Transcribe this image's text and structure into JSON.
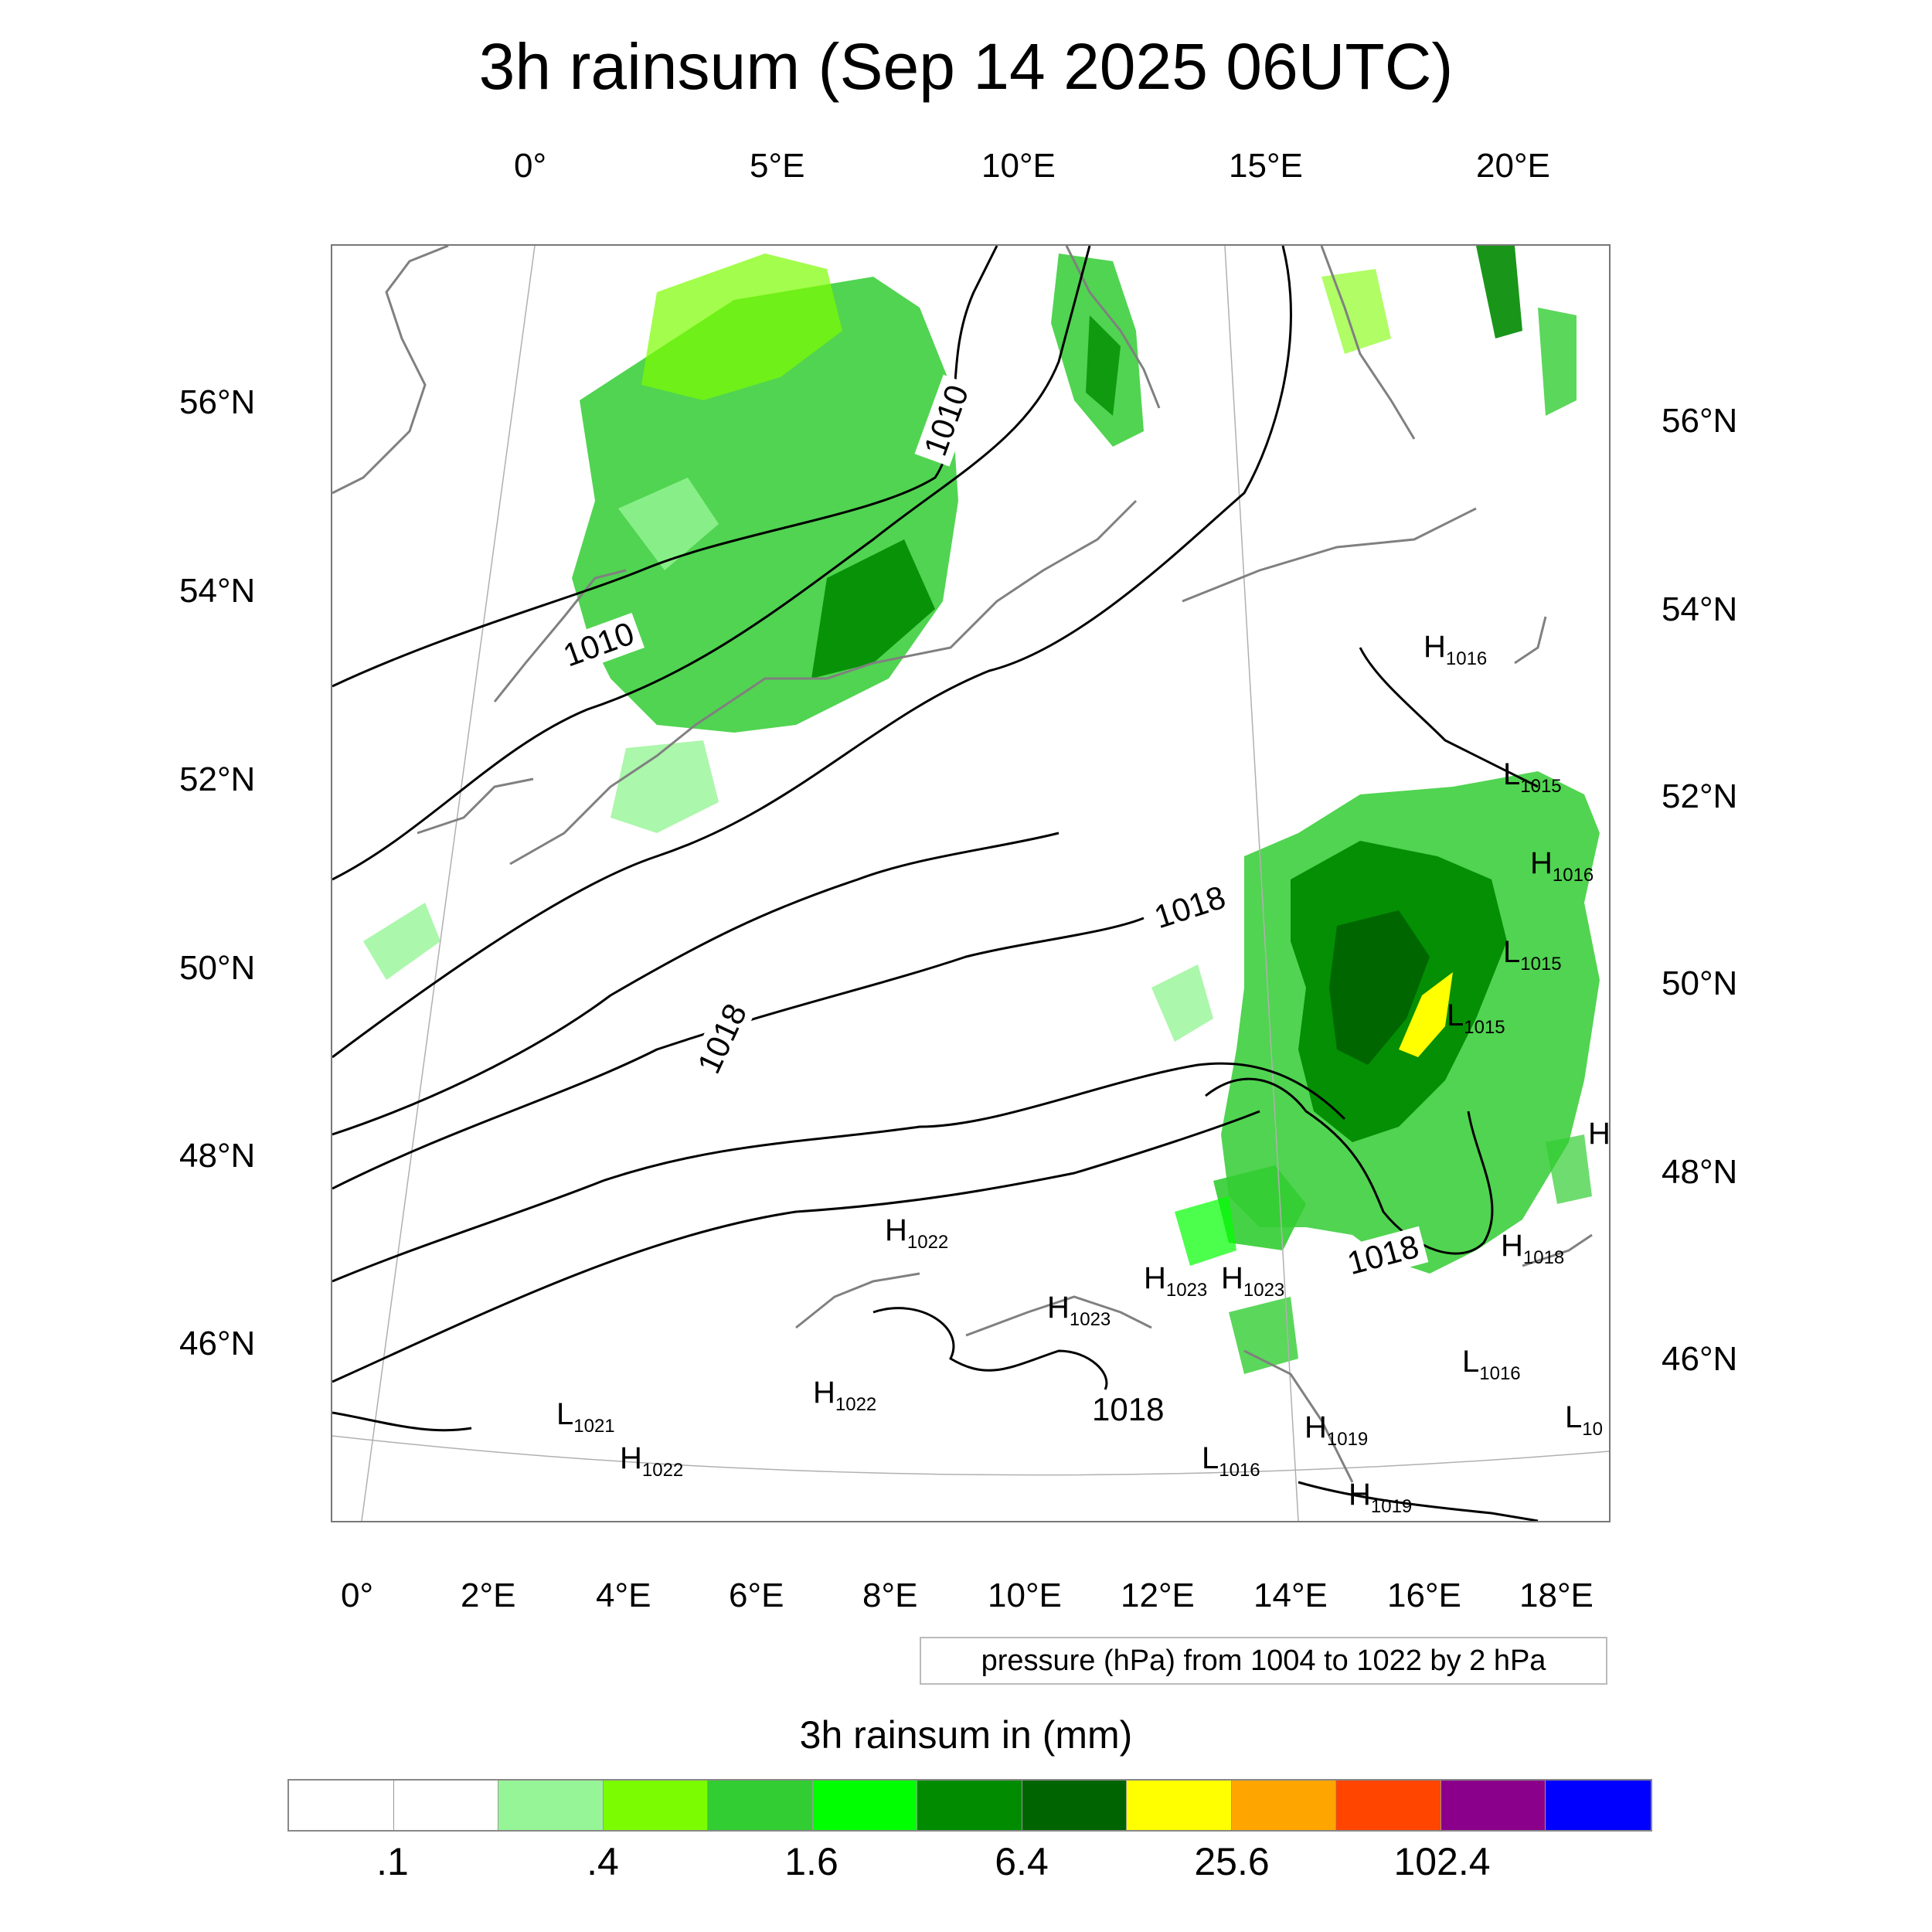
{
  "title": "3h rainsum (Sep 14 2025 06UTC)",
  "top_lon_labels": [
    "0°",
    "5°E",
    "10°E",
    "15°E",
    "20°E"
  ],
  "bottom_lon_labels": [
    "0°",
    "2°E",
    "4°E",
    "6°E",
    "8°E",
    "10°E",
    "12°E",
    "14°E",
    "16°E",
    "18°E"
  ],
  "left_lat_labels": [
    "56°N",
    "54°N",
    "52°N",
    "50°N",
    "48°N",
    "46°N"
  ],
  "right_lat_labels": [
    "56°N",
    "54°N",
    "52°N",
    "50°N",
    "48°N",
    "46°N"
  ],
  "pressure_note": "pressure (hPa) from 1004 to 1022 by 2 hPa",
  "colorbar": {
    "title": "3h rainsum in (mm)",
    "colors": [
      "#ffffff",
      "#ffffff",
      "#96f596",
      "#7cfc00",
      "#32cd32",
      "#00ff00",
      "#008b00",
      "#006400",
      "#ffff00",
      "#ffa500",
      "#ff4500",
      "#8b008b",
      "#0000ff"
    ],
    "labels": [
      ".1",
      ".4",
      "1.6",
      "6.4",
      "25.6",
      "102.4"
    ]
  },
  "contour_labels": [
    "1010",
    "1010",
    "1018",
    "1018",
    "1018",
    "1018"
  ],
  "pressure_centers": [
    {
      "type": "H",
      "value": "1016"
    },
    {
      "type": "L",
      "value": "1015"
    },
    {
      "type": "H",
      "value": "1016"
    },
    {
      "type": "L",
      "value": "1015"
    },
    {
      "type": "L",
      "value": "1015"
    },
    {
      "type": "H",
      "value": ""
    },
    {
      "type": "H",
      "value": "1022"
    },
    {
      "type": "H",
      "value": "1023"
    },
    {
      "type": "H",
      "value": "1023"
    },
    {
      "type": "H",
      "value": "1023"
    },
    {
      "type": "H",
      "value": "1018"
    },
    {
      "type": "L",
      "value": "1016"
    },
    {
      "type": "H",
      "value": "1022"
    },
    {
      "type": "L",
      "value": "1021"
    },
    {
      "type": "H",
      "value": "1022"
    },
    {
      "type": "H",
      "value": "1019"
    },
    {
      "type": "L",
      "value": "1016"
    },
    {
      "type": "H",
      "value": "1019"
    },
    {
      "type": "L",
      "value": "10"
    }
  ]
}
